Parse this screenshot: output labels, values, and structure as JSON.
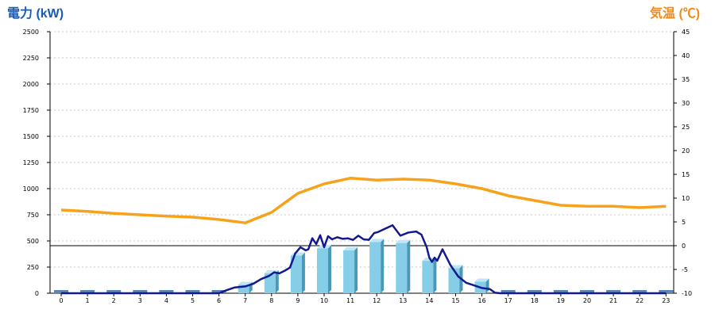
{
  "chart_data": {
    "type": "bar+line",
    "left_axis_title": "電力 (kW)",
    "right_axis_title": "気温 (℃)",
    "x_ticks": [
      "0",
      "1",
      "2",
      "3",
      "4",
      "5",
      "6",
      "7",
      "8",
      "9",
      "10",
      "11",
      "12",
      "13",
      "14",
      "15",
      "16",
      "17",
      "18",
      "19",
      "20",
      "21",
      "22",
      "23"
    ],
    "left_ticks": [
      "0",
      "250",
      "500",
      "750",
      "1000",
      "1250",
      "1500",
      "1750",
      "2000",
      "2250",
      "2500"
    ],
    "right_ticks": [
      "-10",
      "-5",
      "0",
      "5",
      "10",
      "15",
      "20",
      "25",
      "30",
      "35",
      "40",
      "45"
    ],
    "ylim_left": [
      0,
      2500
    ],
    "ylim_right": [
      -10,
      45
    ],
    "grid": true,
    "reference_line_left": 455,
    "bars": {
      "unit": "kW",
      "hours": [
        0,
        1,
        2,
        3,
        4,
        5,
        6,
        7,
        8,
        9,
        10,
        11,
        12,
        13,
        14,
        15,
        16,
        17,
        18,
        19,
        20,
        21,
        22,
        23
      ],
      "values": [
        0,
        0,
        0,
        0,
        0,
        0,
        0,
        80,
        190,
        360,
        430,
        410,
        490,
        480,
        310,
        240,
        110,
        0,
        0,
        0,
        0,
        0,
        0,
        0
      ]
    },
    "power_line": {
      "unit": "kW",
      "x": [
        0,
        1,
        2,
        3,
        4,
        5,
        6,
        6.3,
        6.6,
        7,
        7.3,
        7.6,
        7.9,
        8.1,
        8.3,
        8.5,
        8.7,
        8.9,
        9.1,
        9.3,
        9.4,
        9.55,
        9.7,
        9.85,
        10,
        10.15,
        10.3,
        10.5,
        10.7,
        10.9,
        11.1,
        11.3,
        11.5,
        11.7,
        11.9,
        12.05,
        12.3,
        12.6,
        12.9,
        13.2,
        13.5,
        13.7,
        13.8,
        13.9,
        14.0,
        14.1,
        14.2,
        14.3,
        14.5,
        14.8,
        15.1,
        15.4,
        15.7,
        16,
        16.3,
        16.5,
        16.7,
        17,
        18,
        19,
        20,
        21,
        22,
        23
      ],
      "values": [
        0,
        0,
        0,
        0,
        0,
        0,
        0,
        30,
        55,
        65,
        90,
        135,
        165,
        200,
        190,
        215,
        245,
        380,
        440,
        410,
        420,
        525,
        470,
        555,
        440,
        545,
        515,
        535,
        520,
        525,
        510,
        550,
        515,
        510,
        575,
        585,
        615,
        650,
        550,
        580,
        590,
        560,
        500,
        440,
        340,
        300,
        340,
        310,
        420,
        270,
        160,
        100,
        75,
        50,
        40,
        5,
        0,
        0,
        0,
        0,
        0,
        0,
        0,
        0
      ]
    },
    "temperature_line": {
      "unit": "℃",
      "hours": [
        0,
        1,
        2,
        3,
        4,
        5,
        6,
        7,
        8,
        9,
        10,
        11,
        12,
        13,
        14,
        15,
        16,
        17,
        18,
        19,
        20,
        21,
        22,
        23
      ],
      "values": [
        7.5,
        7.2,
        6.8,
        6.5,
        6.2,
        6.0,
        5.5,
        4.8,
        7.0,
        11.0,
        13.0,
        14.2,
        13.8,
        14.0,
        13.8,
        13.0,
        12.0,
        10.5,
        9.5,
        8.5,
        8.3,
        8.3,
        8.0,
        8.3
      ]
    },
    "colors": {
      "left_axis": "#1a5bb5",
      "right_axis": "#f08a1c",
      "bar": "#86cde8",
      "power_line": "#121a8e",
      "temperature_line": "#f6a21a",
      "baseline_markers": "#5b86b6"
    }
  }
}
